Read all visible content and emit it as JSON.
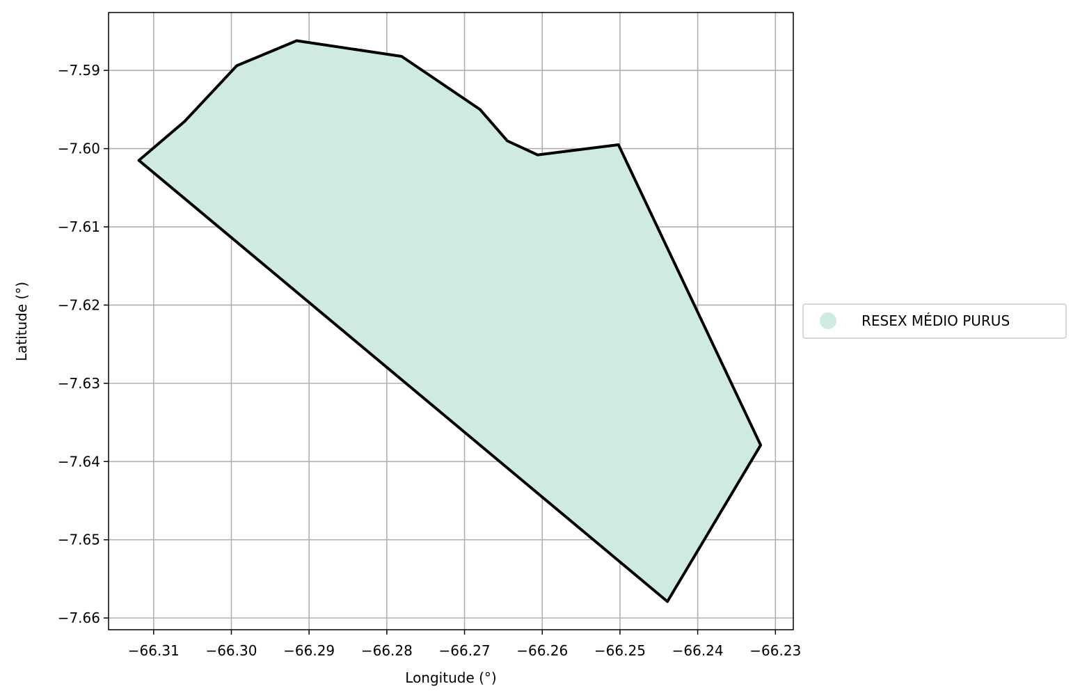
{
  "chart_data": {
    "type": "map",
    "xlabel": "Longitude (°)",
    "ylabel": "Latitude (°)",
    "xlim": [
      -66.3158,
      -66.2277
    ],
    "ylim": [
      -7.6615,
      -7.5826
    ],
    "grid": true,
    "x_ticks": [
      -66.31,
      -66.3,
      -66.29,
      -66.28,
      -66.27,
      -66.26,
      -66.25,
      -66.24,
      -66.23
    ],
    "x_tick_labels": [
      "−66.31",
      "−66.30",
      "−66.29",
      "−66.28",
      "−66.27",
      "−66.26",
      "−66.25",
      "−66.24",
      "−66.23"
    ],
    "y_ticks": [
      -7.59,
      -7.6,
      -7.61,
      -7.62,
      -7.63,
      -7.64,
      -7.65,
      -7.66
    ],
    "y_tick_labels": [
      "−7.59",
      "−7.60",
      "−7.61",
      "−7.62",
      "−7.63",
      "−7.64",
      "−7.65",
      "−7.66"
    ],
    "legend_position": "right",
    "series": [
      {
        "name": "RESEX MÉDIO PURUS",
        "fill_color": "#cfeade",
        "edge_color": "#000000",
        "polygon": [
          [
            -66.3119,
            -7.6015
          ],
          [
            -66.306,
            -7.5965
          ],
          [
            -66.2993,
            -7.5894
          ],
          [
            -66.2916,
            -7.5862
          ],
          [
            -66.2781,
            -7.5882
          ],
          [
            -66.268,
            -7.595
          ],
          [
            -66.2645,
            -7.599
          ],
          [
            -66.2606,
            -7.6008
          ],
          [
            -66.2502,
            -7.5995
          ],
          [
            -66.2319,
            -7.6379
          ],
          [
            -66.2439,
            -7.6579
          ],
          [
            -66.3119,
            -7.6015
          ]
        ]
      }
    ]
  }
}
